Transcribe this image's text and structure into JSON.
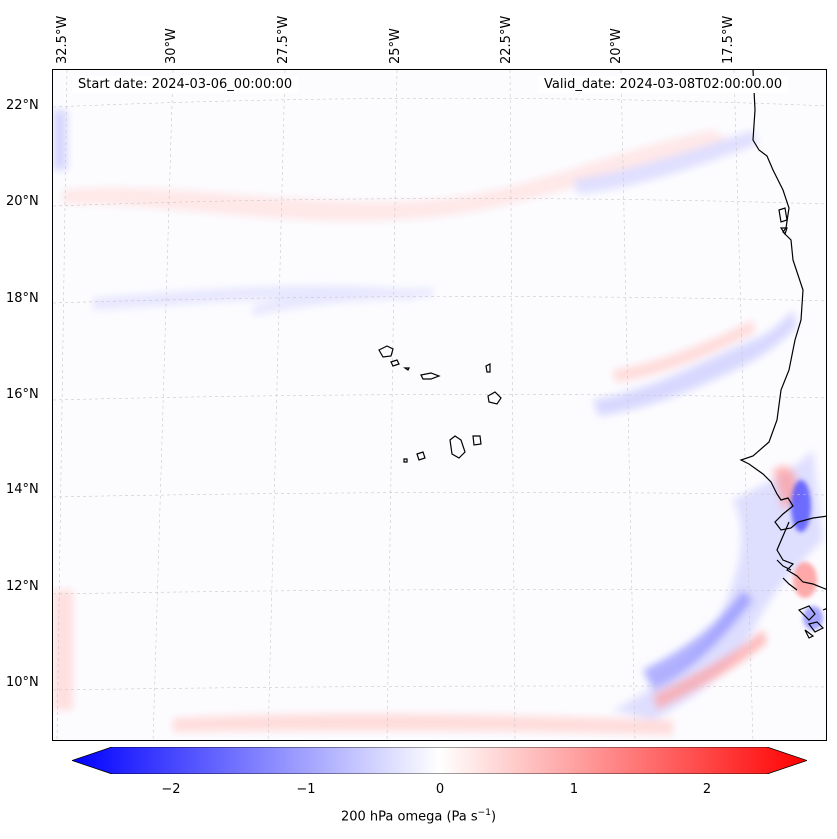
{
  "header": {
    "start_date": "Start date: 2024-03-06_00:00:00",
    "valid_date": "Valid_date: 2024-03-08T02:00:00.00"
  },
  "map": {
    "lon_labels": [
      "32.5°W",
      "30°W",
      "27.5°W",
      "25°W",
      "22.5°W",
      "20°W",
      "17.5°W"
    ],
    "lat_labels": [
      "22°N",
      "20°N",
      "18°N",
      "16°N",
      "14°N",
      "12°N",
      "10°N"
    ],
    "features": [
      "Cape Verde islands",
      "West African coastline"
    ]
  },
  "colorbar": {
    "label_text": "200 hPa omega (Pa s",
    "label_sup": "−1",
    "label_close": ")",
    "ticks": [
      "−2",
      "−1",
      "0",
      "1",
      "2"
    ],
    "range": [
      -2.6,
      2.6
    ],
    "colormap": "bwr",
    "low_color": "#0000ff",
    "mid_color": "#ffffff",
    "high_color": "#ff0000"
  }
}
